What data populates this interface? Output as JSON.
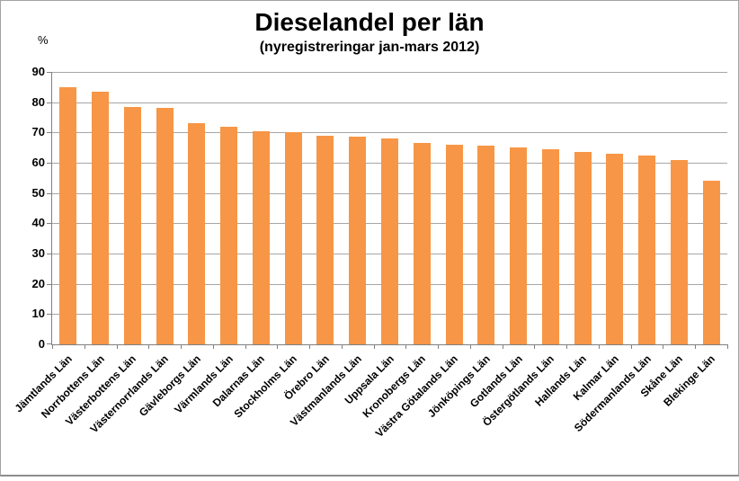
{
  "chart_data": {
    "type": "bar",
    "title": "Dieselandel per län",
    "subtitle": "(nyregistreringar jan-mars 2012)",
    "ylabel": "%",
    "ylim": [
      0,
      90
    ],
    "yticks": [
      0,
      10,
      20,
      30,
      40,
      50,
      60,
      70,
      80,
      90
    ],
    "grid": true,
    "legend": "none",
    "bar_color": "#f79646",
    "gridline_color": "#a6a6a6",
    "axis_color": "#808080",
    "categories": [
      "Jämtlands Län",
      "Norrbottens Län",
      "Västerbottens Län",
      "Västernorrlands Län",
      "Gävleborgs Län",
      "Värmlands Län",
      "Dalarnas Län",
      "Stockholms Län",
      "Örebro Län",
      "Västmanlands Län",
      "Uppsala Län",
      "Kronobergs Län",
      "Västra Götalands Län",
      "Jönköpings Län",
      "Gotlands Län",
      "Östergötlands Län",
      "Hallands Län",
      "Kalmar Län",
      "Södermanlands Län",
      "Skåne Län",
      "Blekinge Län"
    ],
    "values": [
      85,
      83.5,
      78.5,
      78,
      73,
      72,
      70.5,
      70,
      69,
      68.5,
      68,
      66.5,
      66,
      65.5,
      65,
      64.5,
      63.5,
      63,
      62.5,
      61,
      54
    ]
  }
}
